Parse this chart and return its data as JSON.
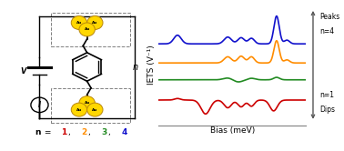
{
  "fig_width": 3.78,
  "fig_height": 1.66,
  "dpi": 100,
  "colors": {
    "red": "#cc0000",
    "green": "#228B22",
    "orange": "#FF8C00",
    "blue": "#1111cc"
  },
  "xlabel": "Bias (meV)",
  "ylabel": "IETS (V⁻¹)",
  "n_label_colors": [
    "#cc0000",
    "#FF8C00",
    "#228B22",
    "#1111cc"
  ],
  "au_color": "#FFD700",
  "au_edge": "#B8860B",
  "circuit_text": "n",
  "V_label": "V",
  "I_label": "I",
  "peaks_label": "Peaks",
  "n4_label": "n=4",
  "n1_label": "n=1",
  "dips_label": "Dips"
}
